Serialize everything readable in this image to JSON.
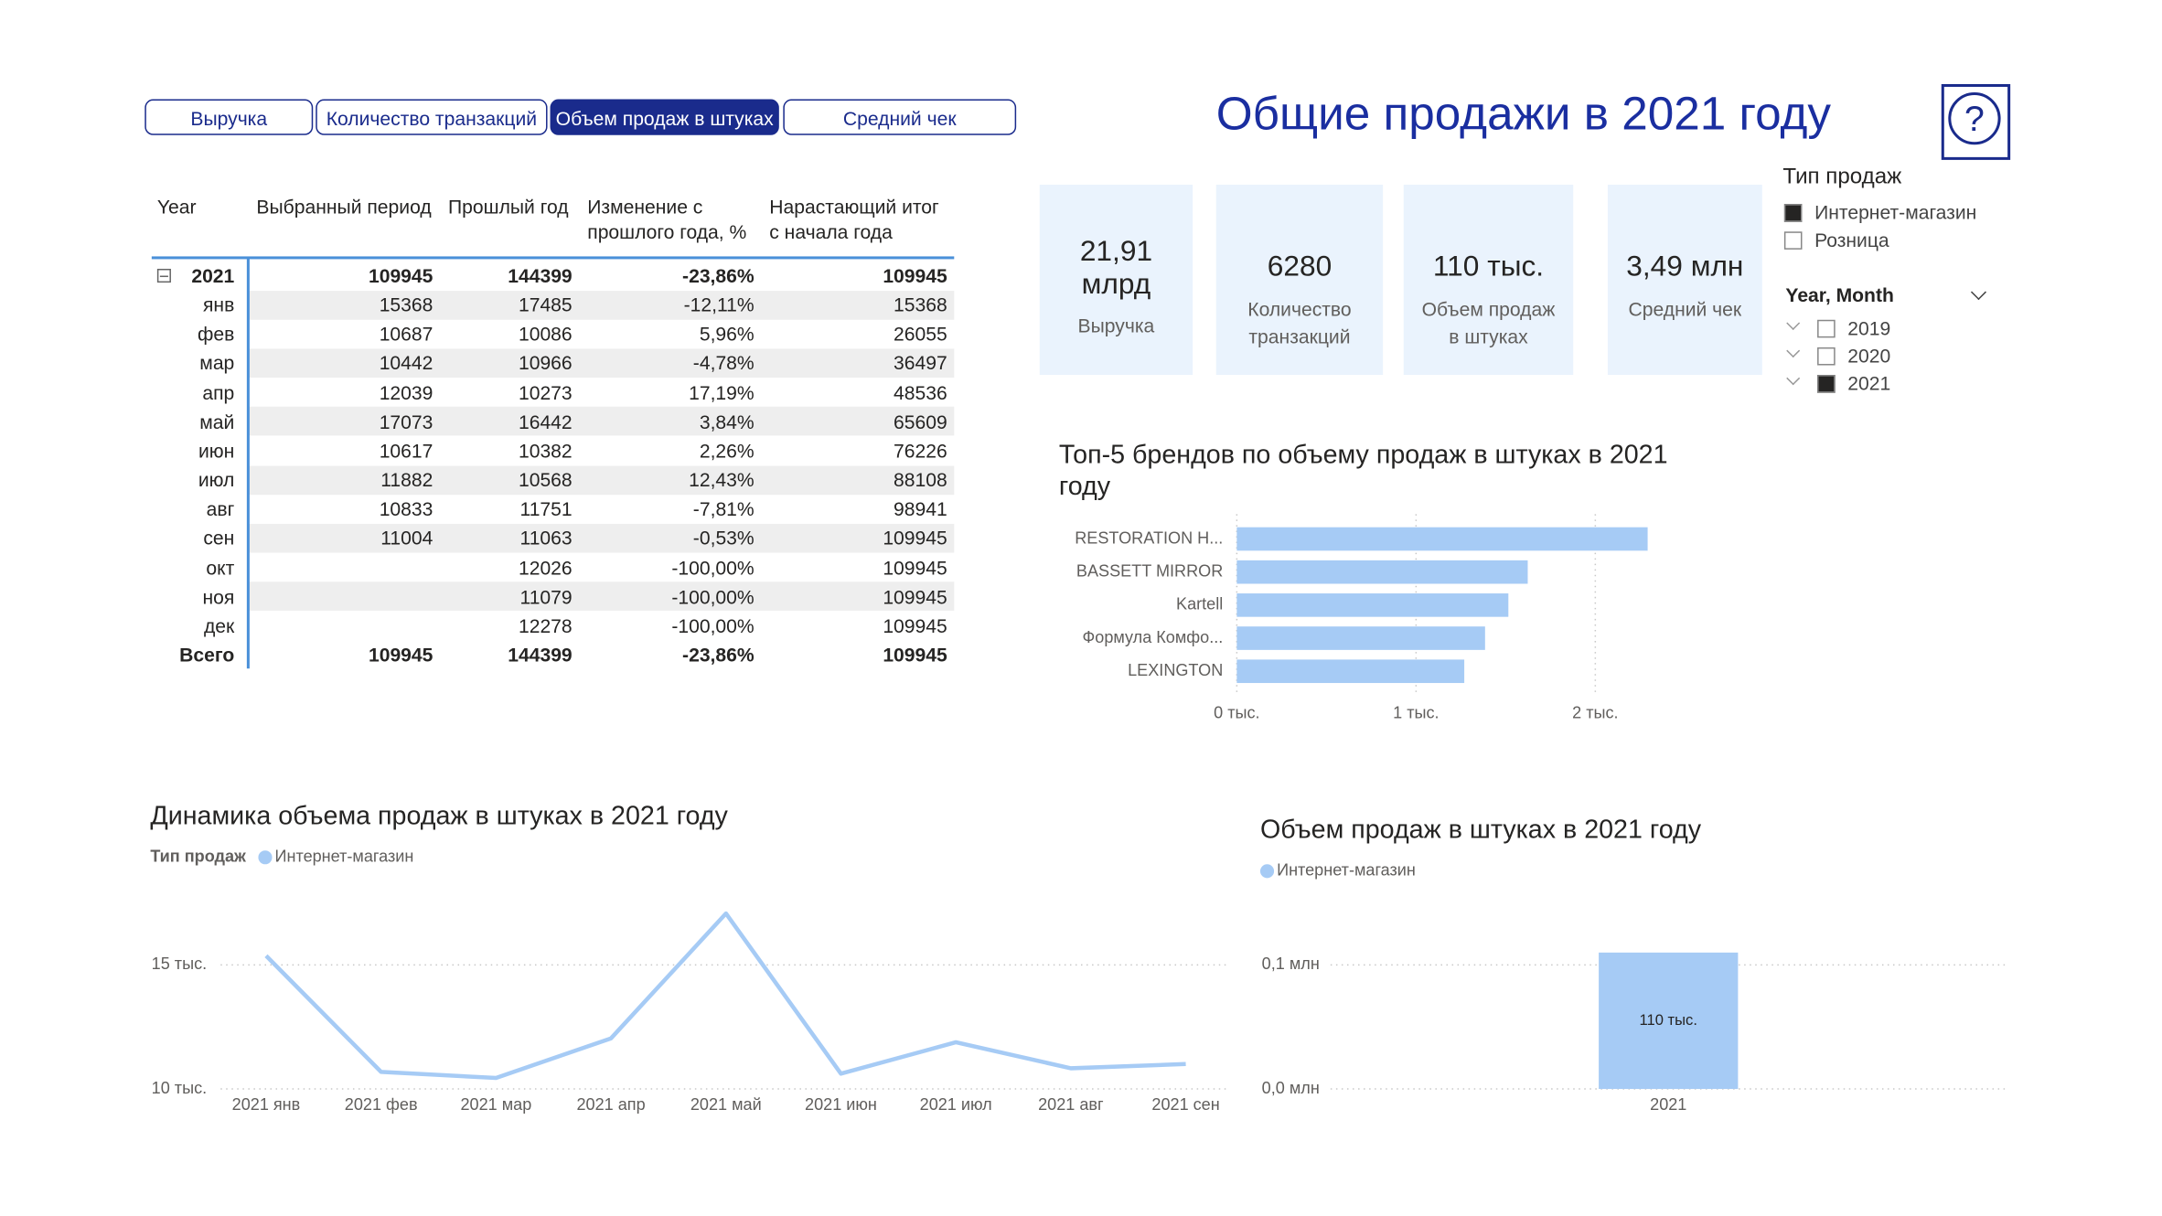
{
  "tabs": {
    "items": [
      "Выручка",
      "Количество транзакций",
      "Объем продаж в штуках",
      "Средний чек"
    ],
    "active": 2
  },
  "header": {
    "title": "Общие продажи в 2021 году",
    "help_icon": "?"
  },
  "table": {
    "columns": [
      "Year",
      "Выбранный период",
      "Прошлый год",
      "Изменение с прошлого года, %",
      "Нарастающий итог с начала года"
    ],
    "rows": [
      [
        "2021",
        109945,
        144399,
        "-23,86%",
        109945
      ],
      [
        "янв",
        15368,
        17485,
        "-12,11%",
        15368
      ],
      [
        "фев",
        10687,
        10086,
        "5,96%",
        26055
      ],
      [
        "мар",
        10442,
        10966,
        "-4,78%",
        36497
      ],
      [
        "апр",
        12039,
        10273,
        "17,19%",
        48536
      ],
      [
        "май",
        17073,
        16442,
        "3,84%",
        65609
      ],
      [
        "июн",
        10617,
        10382,
        "2,26%",
        76226
      ],
      [
        "июл",
        11882,
        10568,
        "12,43%",
        88108
      ],
      [
        "авг",
        10833,
        11751,
        "-7,81%",
        98941
      ],
      [
        "сен",
        11004,
        11063,
        "-0,53%",
        109945
      ],
      [
        "окт",
        null,
        12026,
        "-100,00%",
        109945
      ],
      [
        "ноя",
        null,
        11079,
        "-100,00%",
        109945
      ],
      [
        "дек",
        null,
        12278,
        "-100,00%",
        109945
      ],
      [
        "Всего",
        109945,
        144399,
        "-23,86%",
        109945
      ]
    ]
  },
  "kpis": [
    {
      "value": "21,91 млрд",
      "label": "Выручка"
    },
    {
      "value": "6280",
      "label": "Количество транзакций"
    },
    {
      "value": "110 тыс.",
      "label": "Объем продаж в штуках"
    },
    {
      "value": "3,49 млн",
      "label": "Средний чек"
    }
  ],
  "slicers": [
    {
      "title": "Тип продаж",
      "items": [
        {
          "label": "Интернет-магазин",
          "checked": true
        },
        {
          "label": "Розница",
          "checked": false
        }
      ]
    },
    {
      "title": "Year, Month",
      "items": [
        {
          "label": "2019",
          "checked": false
        },
        {
          "label": "2020",
          "checked": false
        },
        {
          "label": "2021",
          "checked": true
        }
      ]
    }
  ],
  "chart_data": [
    {
      "type": "bar",
      "horizontal": true,
      "title": "Топ-5 брендов по объему продаж в штуках в 2021 году",
      "categories": [
        "RESTORATION H...",
        "BASSETT MIRROR",
        "Kartell",
        "Формула Комфо...",
        "LEXINGTON"
      ],
      "values": [
        2292,
        1623,
        1515,
        1385,
        1269
      ],
      "color": "#a6cbf5",
      "xlim": [
        0,
        2600
      ],
      "xticks": [
        {
          "value": 0,
          "label": "0 тыс."
        },
        {
          "value": 1000,
          "label": "1 тыс."
        },
        {
          "value": 2000,
          "label": "2 тыс."
        }
      ],
      "grid": true
    },
    {
      "type": "line",
      "title": "Динамика объема продаж в штуках в 2021 году",
      "legend_title": "Тип продаж",
      "categories": [
        "2021 янв",
        "2021 фев",
        "2021 мар",
        "2021 апр",
        "2021 май",
        "2021 июн",
        "2021 июл",
        "2021 авг",
        "2021 сен"
      ],
      "series": [
        {
          "name": "Интернет-магазин",
          "color": "#a6cbf5",
          "values": [
            15368,
            10687,
            10442,
            12039,
            17073,
            10617,
            11882,
            10833,
            11004
          ]
        }
      ],
      "ylim": [
        10000,
        17500
      ],
      "yticks": [
        {
          "value": 10000,
          "label": "10 тыс."
        },
        {
          "value": 15000,
          "label": "15 тыс."
        }
      ],
      "grid": true
    },
    {
      "type": "bar",
      "horizontal": false,
      "title": "Объем продаж в штуках в 2021 году",
      "categories": [
        "2021"
      ],
      "series": [
        {
          "name": "Интернет-магазин",
          "color": "#a6cbf5",
          "values": [
            109945
          ],
          "value_labels": [
            "110 тыс."
          ]
        }
      ],
      "ylim": [
        0,
        120000
      ],
      "yticks": [
        {
          "value": 0,
          "label": "0,0 млн"
        },
        {
          "value": 100000,
          "label": "0,1 млн"
        }
      ],
      "grid": true
    }
  ]
}
